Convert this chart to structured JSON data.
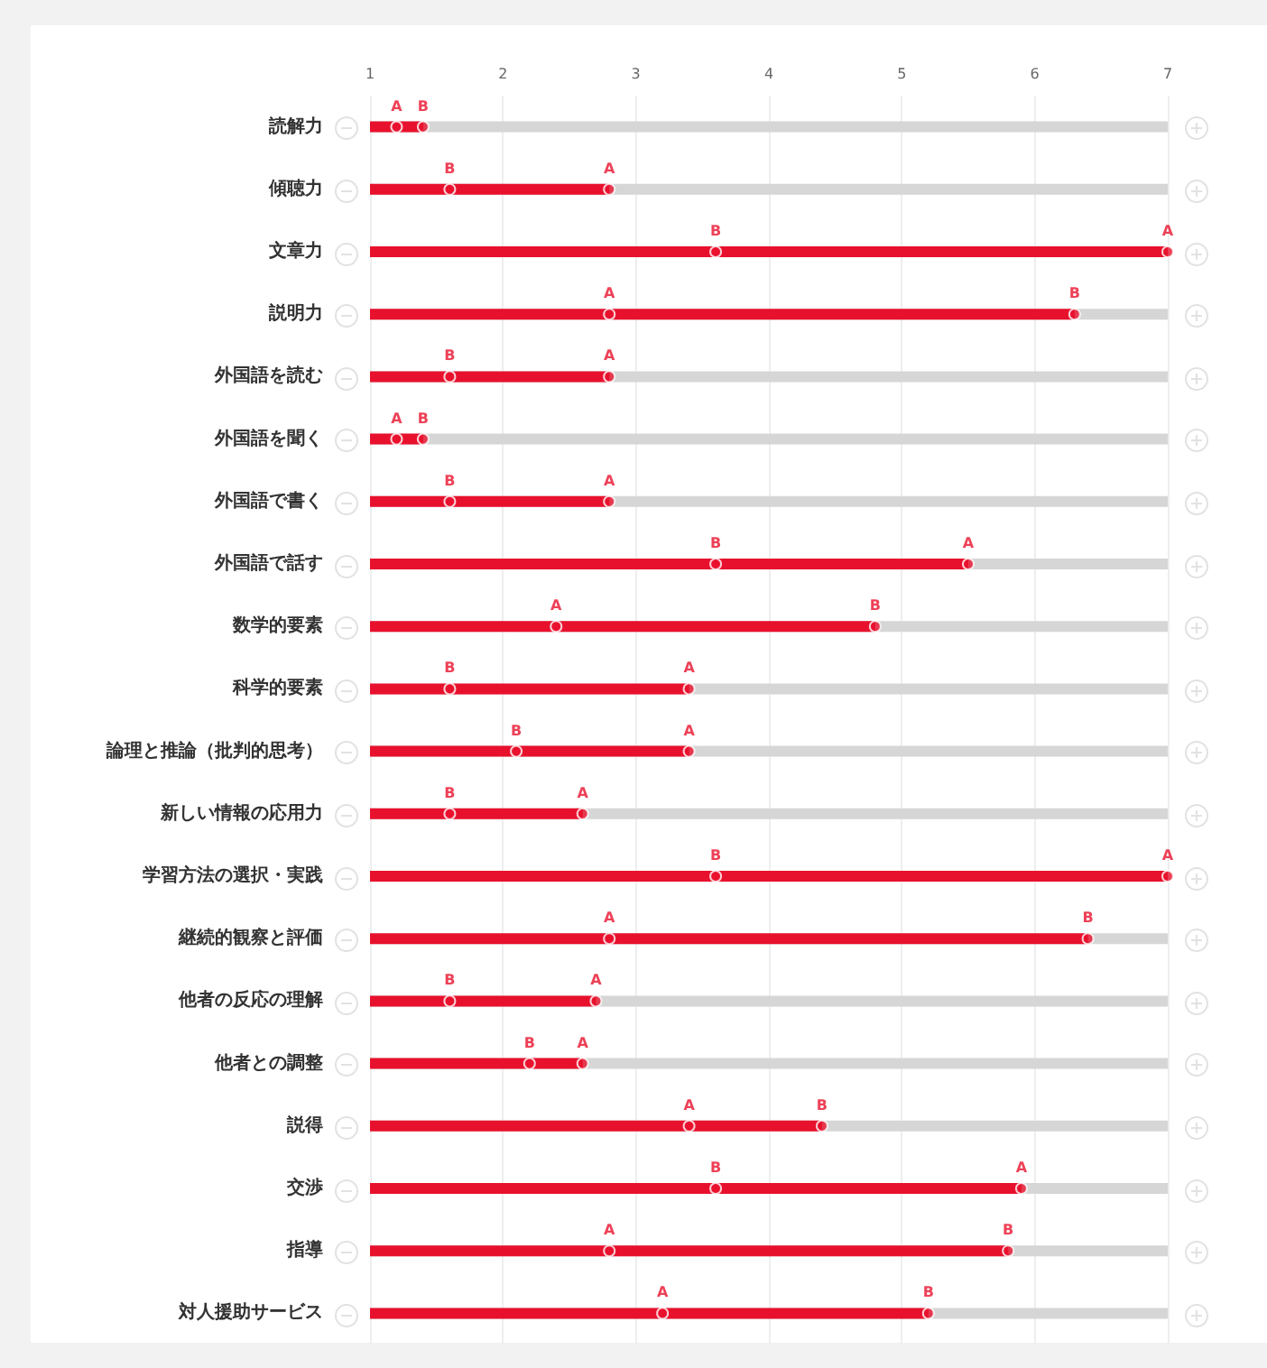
{
  "chart_data": {
    "type": "bar",
    "orientation": "horizontal",
    "categories": [
      "読解力",
      "傾聴力",
      "文章力",
      "説明力",
      "外国語を読む",
      "外国語を聞く",
      "外国語で書く",
      "外国語で話す",
      "数学的要素",
      "科学的要素",
      "論理と推論（批判的思考）",
      "新しい情報の応用力",
      "学習方法の選択・実践",
      "継続的観察と評価",
      "他者の反応の理解",
      "他者との調整",
      "説得",
      "交渉",
      "指導",
      "対人援助サービス"
    ],
    "series": [
      {
        "color": "#e8112d",
        "values": [
          1.4,
          2.8,
          7,
          6.3,
          2.8,
          1.4,
          2.8,
          5.5,
          4.8,
          3.4,
          3.4,
          2.6,
          7,
          6.4,
          2.7,
          2.6,
          4.4,
          5.9,
          5.8,
          5.2
        ]
      },
      {
        "type": "scatter",
        "name": "A",
        "color": "#e8112d",
        "values": [
          1.2,
          2.8,
          7,
          2.8,
          2.8,
          1.2,
          2.8,
          5.5,
          2.4,
          3.4,
          3.4,
          2.6,
          7,
          2.8,
          2.7,
          2.6,
          3.4,
          5.9,
          2.8,
          3.2
        ]
      },
      {
        "type": "scatter",
        "name": "B",
        "color": "#e8112d",
        "values": [
          1.4,
          1.6,
          3.6,
          6.3,
          1.6,
          1.4,
          1.6,
          3.6,
          4.8,
          1.6,
          2.1,
          1.6,
          3.6,
          6.4,
          1.6,
          2.2,
          4.4,
          3.6,
          5.8,
          5.2
        ]
      }
    ],
    "xlim": [
      1,
      7
    ],
    "xticks": [
      1,
      2,
      3,
      4,
      5,
      6,
      7
    ],
    "grid": "x",
    "legend": false,
    "marker": "circle"
  }
}
